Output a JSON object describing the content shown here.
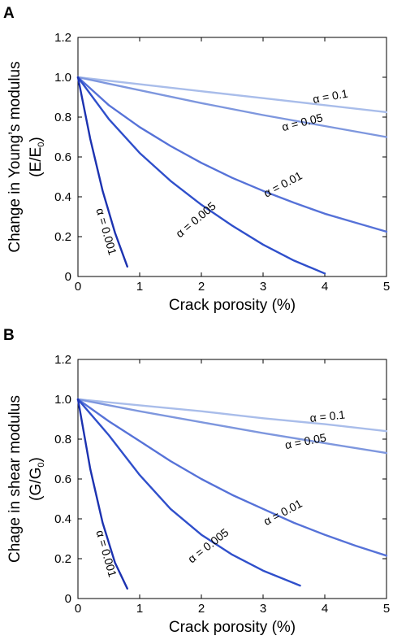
{
  "chart_data": [
    {
      "type": "line",
      "panel_label": "A",
      "xlabel": "Crack porosity (%)",
      "ylabel_line1": "Change in Young’s modulus",
      "ylabel_line2_main": "(E/E",
      "ylabel_line2_sub": "0",
      "ylabel_line2_end": ")",
      "xlim": [
        0,
        5
      ],
      "ylim": [
        0,
        1.2
      ],
      "x_ticks": [
        "0",
        "1",
        "2",
        "3",
        "4",
        "5"
      ],
      "y_ticks": [
        "0",
        "0.2",
        "0.4",
        "0.6",
        "0.8",
        "1.0",
        "1.2"
      ],
      "series": [
        {
          "name": "α = 0.1",
          "color": "#a9bdea",
          "x": [
            0,
            1,
            2,
            3,
            4,
            5
          ],
          "y": [
            1.0,
            0.965,
            0.93,
            0.895,
            0.86,
            0.825
          ]
        },
        {
          "name": "α = 0.05",
          "color": "#7e97de",
          "x": [
            0,
            1,
            2,
            3,
            4,
            5
          ],
          "y": [
            1.0,
            0.935,
            0.87,
            0.81,
            0.755,
            0.7
          ]
        },
        {
          "name": "α = 0.01",
          "color": "#5672d8",
          "x": [
            0,
            0.5,
            1,
            1.5,
            2,
            2.5,
            3,
            3.5,
            4,
            4.5,
            5
          ],
          "y": [
            1.0,
            0.86,
            0.75,
            0.655,
            0.57,
            0.495,
            0.43,
            0.37,
            0.315,
            0.27,
            0.225
          ]
        },
        {
          "name": "α = 0.005",
          "color": "#2f4fcb",
          "x": [
            0,
            0.5,
            1,
            1.5,
            2,
            2.5,
            3,
            3.5,
            4
          ],
          "y": [
            1.0,
            0.79,
            0.62,
            0.48,
            0.36,
            0.255,
            0.16,
            0.08,
            0.015
          ]
        },
        {
          "name": "α = 0.001",
          "color": "#1c32b0",
          "x": [
            0,
            0.2,
            0.4,
            0.6,
            0.8
          ],
          "y": [
            1.0,
            0.69,
            0.43,
            0.22,
            0.05
          ]
        }
      ]
    },
    {
      "type": "line",
      "panel_label": "B",
      "xlabel": "Crack porosity (%)",
      "ylabel_line1": "Chage in shear modulus",
      "ylabel_line2_main": "(G/G",
      "ylabel_line2_sub": "0",
      "ylabel_line2_end": ")",
      "xlim": [
        0,
        5
      ],
      "ylim": [
        0,
        1.2
      ],
      "x_ticks": [
        "0",
        "1",
        "2",
        "3",
        "4",
        "5"
      ],
      "y_ticks": [
        "0",
        "0.2",
        "0.4",
        "0.6",
        "0.8",
        "1.0",
        "1.2"
      ],
      "series": [
        {
          "name": "α = 0.1",
          "color": "#a9bdea",
          "x": [
            0,
            1,
            2,
            3,
            4,
            5
          ],
          "y": [
            1.0,
            0.97,
            0.94,
            0.905,
            0.875,
            0.84
          ]
        },
        {
          "name": "α = 0.05",
          "color": "#7e97de",
          "x": [
            0,
            1,
            2,
            3,
            4,
            5
          ],
          "y": [
            1.0,
            0.94,
            0.885,
            0.83,
            0.78,
            0.73
          ]
        },
        {
          "name": "α = 0.01",
          "color": "#5672d8",
          "x": [
            0,
            0.5,
            1,
            1.5,
            2,
            2.5,
            3,
            3.5,
            4,
            4.5,
            5
          ],
          "y": [
            1.0,
            0.89,
            0.79,
            0.69,
            0.6,
            0.52,
            0.45,
            0.38,
            0.32,
            0.265,
            0.215
          ]
        },
        {
          "name": "α = 0.005",
          "color": "#2f4fcb",
          "x": [
            0,
            0.5,
            1,
            1.5,
            2,
            2.5,
            3,
            3.6
          ],
          "y": [
            1.0,
            0.82,
            0.62,
            0.45,
            0.32,
            0.22,
            0.14,
            0.065
          ]
        },
        {
          "name": "α = 0.001",
          "color": "#1c32b0",
          "x": [
            0,
            0.2,
            0.4,
            0.6,
            0.8
          ],
          "y": [
            1.0,
            0.65,
            0.38,
            0.18,
            0.05
          ]
        }
      ]
    }
  ]
}
